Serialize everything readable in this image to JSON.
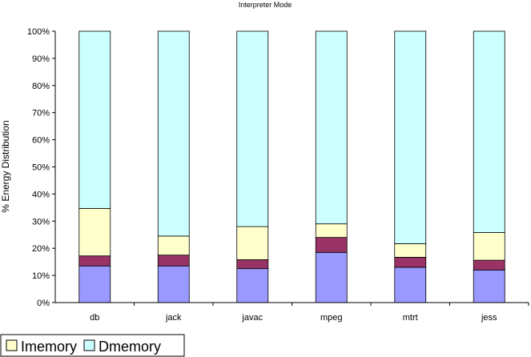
{
  "chart_data": {
    "type": "bar",
    "stacked": true,
    "normalized": true,
    "title": "Interpreter Mode",
    "xlabel": "",
    "ylabel": "% Energy Distribution",
    "ylim": [
      0,
      100
    ],
    "yticks": [
      "0%",
      "10%",
      "20%",
      "30%",
      "40%",
      "50%",
      "60%",
      "70%",
      "80%",
      "90%",
      "100%"
    ],
    "grid": false,
    "legend_position": "bottom-left",
    "categories": [
      "db",
      "jack",
      "javac",
      "mpeg",
      "mtrt",
      "jess"
    ],
    "series": [
      {
        "name": "",
        "color": "#9999ff",
        "values": [
          13.5,
          13.5,
          12.5,
          18.5,
          13.0,
          12.0
        ]
      },
      {
        "name": "",
        "color": "#993366",
        "values": [
          3.7,
          4.0,
          3.3,
          5.5,
          3.7,
          3.6
        ]
      },
      {
        "name": "Imemory",
        "color": "#ffffcc",
        "values": [
          17.5,
          7.0,
          12.2,
          5.0,
          5.0,
          10.2
        ]
      },
      {
        "name": "Dmemory",
        "color": "#ccffff",
        "values": [
          65.3,
          75.5,
          72.0,
          71.0,
          78.3,
          74.2
        ]
      }
    ]
  }
}
